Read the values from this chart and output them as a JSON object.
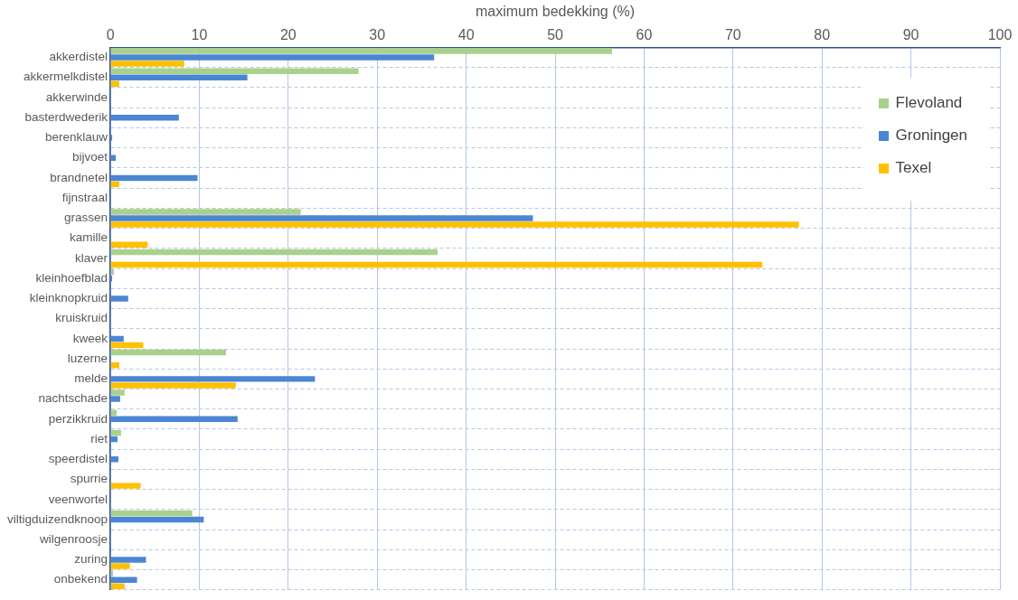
{
  "chart_data": {
    "type": "bar",
    "orientation": "horizontal",
    "xlabel": "maximum bedekking (%)",
    "categories": [
      "akkerdistel",
      "akkermelkdistel",
      "akkerwinde",
      "basterdwederik",
      "berenklauw",
      "bijvoet",
      "brandnetel",
      "fijnstraal",
      "grassen",
      "kamille",
      "klaver",
      "kleinhoefblad",
      "kleinknopkruid",
      "kruiskruid",
      "kweek",
      "luzerne",
      "melde",
      "nachtschade",
      "perzikkruid",
      "riet",
      "speerdistel",
      "spurrie",
      "veenwortel",
      "viltigduizendknoop",
      "wilgenroosje",
      "zuring",
      "onbekend"
    ],
    "series": [
      {
        "name": "Flevoland",
        "color": "#a9d18e",
        "values": [
          56.4,
          27.9,
          null,
          null,
          null,
          null,
          null,
          null,
          21.4,
          null,
          36.8,
          0.4,
          null,
          null,
          null,
          13.0,
          null,
          1.6,
          0.7,
          1.2,
          null,
          null,
          null,
          9.2,
          null,
          null,
          0.3
        ]
      },
      {
        "name": "Groningen",
        "color": "#4a86d4",
        "values": [
          36.4,
          15.4,
          null,
          7.7,
          0.2,
          0.6,
          9.8,
          null,
          47.5,
          null,
          null,
          0.2,
          2.0,
          null,
          1.5,
          null,
          23.0,
          1.1,
          14.3,
          0.8,
          0.9,
          null,
          null,
          10.5,
          null,
          4.0,
          3.0
        ]
      },
      {
        "name": "Texel",
        "color": "#ffc000",
        "values": [
          8.3,
          1.0,
          null,
          null,
          null,
          null,
          1.0,
          null,
          77.4,
          4.2,
          73.3,
          null,
          null,
          null,
          3.7,
          1.0,
          14.1,
          null,
          null,
          null,
          null,
          3.4,
          null,
          null,
          null,
          2.2,
          1.6
        ]
      }
    ],
    "xlim": [
      0,
      100
    ],
    "xticks": [
      0,
      10,
      20,
      30,
      40,
      50,
      60,
      70,
      80,
      90,
      100
    ],
    "grid": true,
    "legend": "top right"
  }
}
